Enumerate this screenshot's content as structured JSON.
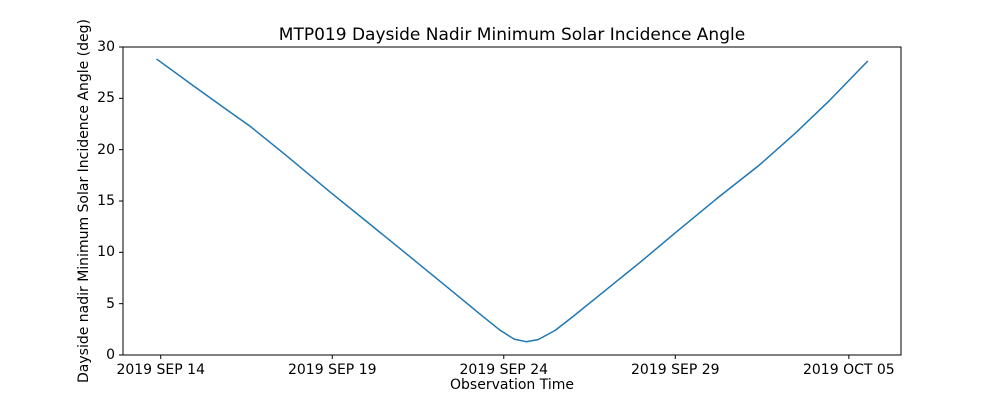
{
  "chart_data": {
    "type": "line",
    "title": "MTP019 Dayside Nadir Minimum Solar Incidence Angle",
    "xlabel": "Observation Time",
    "ylabel": "Dayside nadir Minimum Solar Incidence Angle (deg)",
    "x_unit": "days since 2019 SEP 14",
    "xlim": [
      -1.1,
      21.58
    ],
    "ylim": [
      0,
      30
    ],
    "grid": false,
    "legend": "none",
    "background": "#ffffff",
    "axis_color": "#000000",
    "xticks": [
      {
        "label": "2019 SEP 14",
        "x": 0
      },
      {
        "label": "2019 SEP 19",
        "x": 5
      },
      {
        "label": "2019 SEP 24",
        "x": 10
      },
      {
        "label": "2019 SEP 29",
        "x": 15
      },
      {
        "label": "2019 OCT 05",
        "x": 20.06
      }
    ],
    "yticks": [
      0,
      5,
      10,
      15,
      20,
      25,
      30
    ],
    "series": [
      {
        "name": "dayside-nadir-minimum-solar-incidence-angle",
        "color": "#1f77b4",
        "line_width": 1.5,
        "points": [
          [
            -0.11,
            28.8
          ],
          [
            0.9,
            26.35
          ],
          [
            1.9,
            23.95
          ],
          [
            2.6,
            22.3
          ],
          [
            3.6,
            19.6
          ],
          [
            5.0,
            15.7
          ],
          [
            6.0,
            13.0
          ],
          [
            7.0,
            10.3
          ],
          [
            7.55,
            8.8
          ],
          [
            8.5,
            6.2
          ],
          [
            9.3,
            4.0
          ],
          [
            9.9,
            2.4
          ],
          [
            10.3,
            1.55
          ],
          [
            10.65,
            1.3
          ],
          [
            11.0,
            1.5
          ],
          [
            11.5,
            2.4
          ],
          [
            12.0,
            3.7
          ],
          [
            13.0,
            6.4
          ],
          [
            14.0,
            9.1
          ],
          [
            15.0,
            11.9
          ],
          [
            16.2,
            15.2
          ],
          [
            17.45,
            18.5
          ],
          [
            18.5,
            21.6
          ],
          [
            19.5,
            24.8
          ],
          [
            20.6,
            28.6
          ]
        ]
      }
    ]
  }
}
